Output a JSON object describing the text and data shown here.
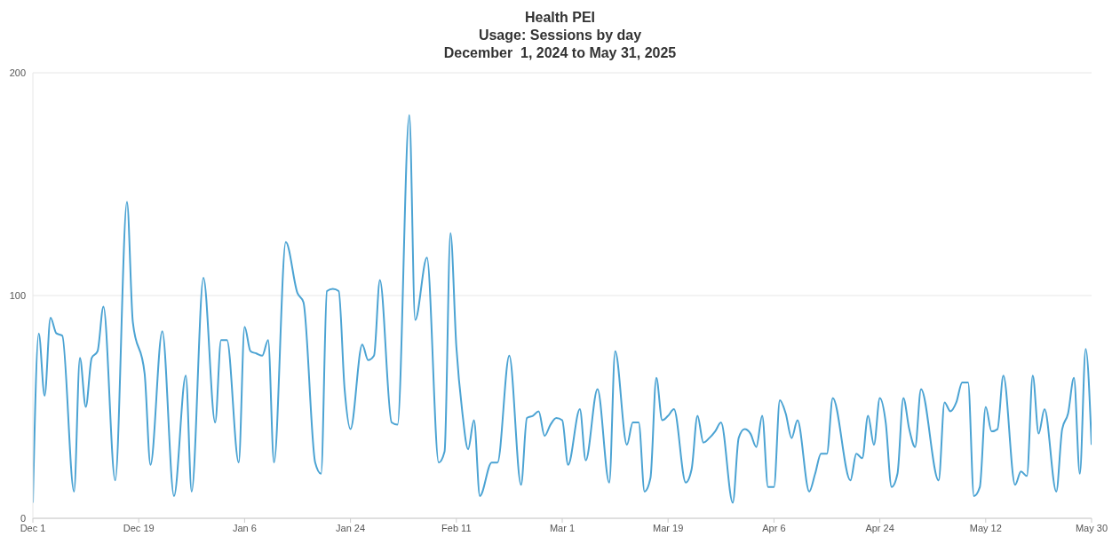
{
  "chart_data": {
    "type": "line",
    "title": "Health PEI",
    "subtitle": "Usage: Sessions by day",
    "annotations": [
      "December  1, 2024 to May 31, 2025"
    ],
    "x": [
      "2024-12-01",
      "2024-12-02",
      "2024-12-03",
      "2024-12-04",
      "2024-12-05",
      "2024-12-06",
      "2024-12-08",
      "2024-12-09",
      "2024-12-10",
      "2024-12-11",
      "2024-12-12",
      "2024-12-13",
      "2024-12-15",
      "2024-12-17",
      "2024-12-18",
      "2024-12-20",
      "2024-12-21",
      "2024-12-23",
      "2024-12-25",
      "2024-12-27",
      "2024-12-28",
      "2024-12-30",
      "2025-01-01",
      "2025-01-02",
      "2025-01-03",
      "2025-01-05",
      "2025-01-06",
      "2025-01-07",
      "2025-01-08",
      "2025-01-09",
      "2025-01-10",
      "2025-01-11",
      "2025-01-13",
      "2025-01-15",
      "2025-01-16",
      "2025-01-18",
      "2025-01-19",
      "2025-01-20",
      "2025-01-21",
      "2025-01-22",
      "2025-01-23",
      "2025-01-24",
      "2025-01-26",
      "2025-01-27",
      "2025-01-28",
      "2025-01-29",
      "2025-01-31",
      "2025-02-01",
      "2025-02-03",
      "2025-02-04",
      "2025-02-06",
      "2025-02-08",
      "2025-02-09",
      "2025-02-10",
      "2025-02-11",
      "2025-02-12",
      "2025-02-13",
      "2025-02-14",
      "2025-02-15",
      "2025-02-17",
      "2025-02-18",
      "2025-02-20",
      "2025-02-22",
      "2025-02-23",
      "2025-02-24",
      "2025-02-25",
      "2025-02-26",
      "2025-02-27",
      "2025-02-28",
      "2025-03-01",
      "2025-03-02",
      "2025-03-04",
      "2025-03-05",
      "2025-03-07",
      "2025-03-09",
      "2025-03-10",
      "2025-03-12",
      "2025-03-13",
      "2025-03-14",
      "2025-03-15",
      "2025-03-16",
      "2025-03-17",
      "2025-03-18",
      "2025-03-19",
      "2025-03-20",
      "2025-03-22",
      "2025-03-23",
      "2025-03-24",
      "2025-03-25",
      "2025-03-26",
      "2025-03-27",
      "2025-03-28",
      "2025-03-30",
      "2025-03-31",
      "2025-04-01",
      "2025-04-02",
      "2025-04-03",
      "2025-04-04",
      "2025-04-05",
      "2025-04-06",
      "2025-04-07",
      "2025-04-08",
      "2025-04-09",
      "2025-04-10",
      "2025-04-12",
      "2025-04-13",
      "2025-04-14",
      "2025-04-15",
      "2025-04-16",
      "2025-04-19",
      "2025-04-20",
      "2025-04-21",
      "2025-04-22",
      "2025-04-23",
      "2025-04-24",
      "2025-04-25",
      "2025-04-26",
      "2025-04-27",
      "2025-04-28",
      "2025-04-29",
      "2025-04-30",
      "2025-05-01",
      "2025-05-04",
      "2025-05-05",
      "2025-05-06",
      "2025-05-07",
      "2025-05-08",
      "2025-05-09",
      "2025-05-10",
      "2025-05-11",
      "2025-05-12",
      "2025-05-13",
      "2025-05-14",
      "2025-05-15",
      "2025-05-17",
      "2025-05-18",
      "2025-05-19",
      "2025-05-20",
      "2025-05-21",
      "2025-05-22",
      "2025-05-24",
      "2025-05-25",
      "2025-05-26",
      "2025-05-27",
      "2025-05-28",
      "2025-05-29",
      "2025-05-30"
    ],
    "series": [
      {
        "color": "#4ba3d3",
        "values": [
          7,
          83,
          55,
          90,
          83,
          82,
          12,
          72,
          50,
          72,
          75,
          95,
          17,
          142,
          88,
          65,
          24,
          84,
          10,
          64,
          12,
          108,
          43,
          80,
          80,
          25,
          86,
          75,
          74,
          73,
          80,
          25,
          124,
          101,
          97,
          25,
          20,
          102,
          103,
          102,
          58,
          40,
          78,
          71,
          73,
          107,
          43,
          42,
          181,
          89,
          117,
          25,
          30,
          128,
          77,
          48,
          31,
          44,
          10,
          25,
          25,
          73,
          15,
          45,
          46,
          48,
          37,
          42,
          45,
          44,
          24,
          49,
          26,
          58,
          16,
          75,
          33,
          43,
          43,
          12,
          18,
          63,
          44,
          46,
          49,
          16,
          22,
          46,
          34,
          36,
          39,
          43,
          7,
          36,
          40,
          38,
          32,
          46,
          14,
          14,
          53,
          47,
          36,
          44,
          12,
          20,
          29,
          29,
          54,
          17,
          29,
          27,
          46,
          33,
          54,
          43,
          14,
          20,
          54,
          40,
          32,
          58,
          17,
          52,
          48,
          52,
          61,
          61,
          10,
          14,
          50,
          39,
          40,
          64,
          15,
          21,
          19,
          64,
          38,
          49,
          12,
          40,
          47,
          63,
          20,
          76,
          33
        ]
      }
    ],
    "xlim": [
      "2024-12-01",
      "2025-05-30"
    ],
    "xticks": [
      {
        "value": "2024-12-01",
        "label": "Dec 1"
      },
      {
        "value": "2024-12-19",
        "label": "Dec 19"
      },
      {
        "value": "2025-01-06",
        "label": "Jan 6"
      },
      {
        "value": "2025-01-24",
        "label": "Jan 24"
      },
      {
        "value": "2025-02-11",
        "label": "Feb 11"
      },
      {
        "value": "2025-03-01",
        "label": "Mar 1"
      },
      {
        "value": "2025-03-19",
        "label": "Mar 19"
      },
      {
        "value": "2025-04-06",
        "label": "Apr 6"
      },
      {
        "value": "2025-04-24",
        "label": "Apr 24"
      },
      {
        "value": "2025-05-12",
        "label": "May 12"
      },
      {
        "value": "2025-05-30",
        "label": "May 30"
      }
    ],
    "ylim": [
      0,
      200
    ],
    "yticks": [
      0,
      100,
      200
    ],
    "grid": "y",
    "legend": false
  }
}
